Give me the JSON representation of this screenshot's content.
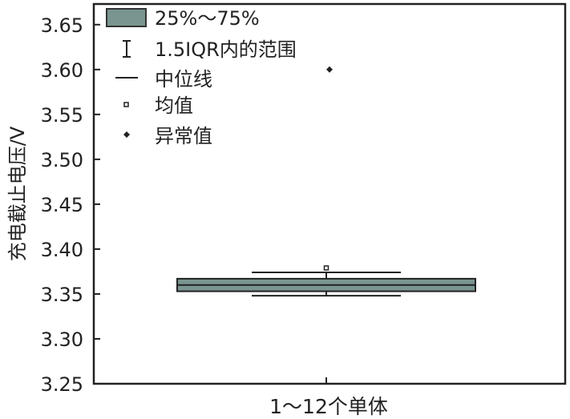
{
  "chart_data": {
    "type": "box",
    "categories": [
      "1～12个单体"
    ],
    "xlabel": "1～12个单体",
    "ylabel": "充电截止电压/V",
    "ylim": [
      3.25,
      3.673
    ],
    "yticks": [
      "3.25",
      "3.30",
      "3.35",
      "3.40",
      "3.45",
      "3.50",
      "3.55",
      "3.60",
      "3.65"
    ],
    "box": {
      "q1": 3.353,
      "q3": 3.367,
      "median": 3.36,
      "whisker_low": 3.348,
      "whisker_high": 3.374,
      "mean": 3.379,
      "outliers": [
        3.6
      ]
    },
    "legend": {
      "placement": "top-left",
      "items": [
        "25%～75%",
        "1.5IQR内的范围",
        "中位线",
        "均值",
        "异常值"
      ]
    },
    "grid": false,
    "colors": {
      "box_fill": "#7a9590",
      "line": "#222222"
    }
  }
}
